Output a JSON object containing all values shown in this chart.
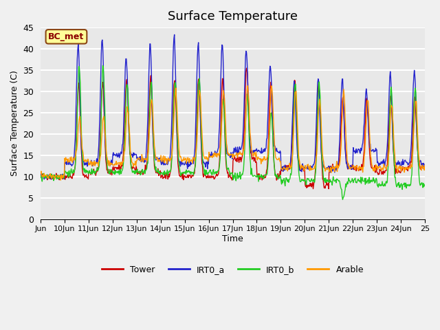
{
  "title": "Surface Temperature",
  "ylabel": "Surface Temperature (C)",
  "xlabel": "Time",
  "annotation": "BC_met",
  "ylim": [
    0,
    45
  ],
  "xlim_days": [
    9,
    25
  ],
  "x_tick_positions": [
    9,
    10,
    11,
    12,
    13,
    14,
    15,
    16,
    17,
    18,
    19,
    20,
    21,
    22,
    23,
    24,
    25
  ],
  "x_tick_labels": [
    "Jun",
    "10Jun",
    "11Jun",
    "12Jun",
    "13Jun",
    "14Jun",
    "15Jun",
    "16Jun",
    "17Jun",
    "18Jun",
    "19Jun",
    "20Jun",
    "21Jun",
    "22Jun",
    "23Jun",
    "24Jun",
    "25"
  ],
  "y_tick_positions": [
    0,
    5,
    10,
    15,
    20,
    25,
    30,
    35,
    40,
    45
  ],
  "y_tick_labels": [
    "0",
    "5",
    "10",
    "15",
    "20",
    "25",
    "30",
    "35",
    "40",
    "45"
  ],
  "legend_entries": [
    "Tower",
    "IRT0_a",
    "IRT0_b",
    "Arable"
  ],
  "colors": {
    "Tower": "#cc0000",
    "IRT0_a": "#2222cc",
    "IRT0_b": "#22cc22",
    "Arable": "#ff9900"
  },
  "plot_bg_color": "#e8e8e8",
  "fig_bg_color": "#f0f0f0",
  "grid_color": "#ffffff",
  "annotation_bg": "#ffff99",
  "annotation_border": "#8B4513",
  "annotation_text_color": "#8B0000",
  "tower_max": [
    10,
    32,
    32,
    33,
    33,
    33,
    33,
    33,
    36,
    32,
    33,
    32,
    28,
    28,
    29,
    29
  ],
  "tower_min": [
    10,
    10,
    11,
    12,
    11,
    10,
    10,
    10,
    14,
    10,
    12,
    8,
    12,
    12,
    11,
    12
  ],
  "irta_max": [
    10,
    41,
    42,
    38,
    41,
    43,
    41,
    41,
    40,
    36,
    32,
    33,
    33,
    30,
    34,
    35
  ],
  "irta_min": [
    10,
    13,
    13,
    15,
    14,
    13,
    13,
    15,
    16,
    16,
    12,
    12,
    12,
    16,
    13,
    13
  ],
  "irtb_max": [
    10,
    36,
    36,
    32,
    32,
    33,
    33,
    28,
    29,
    25,
    32,
    32,
    5,
    9,
    31,
    31
  ],
  "irtb_min": [
    10,
    11,
    11,
    11,
    11,
    11,
    11,
    11,
    10,
    10,
    9,
    9,
    9,
    9,
    8,
    8
  ],
  "arable_max": [
    10,
    24,
    24,
    26,
    28,
    30,
    30,
    30,
    31,
    31,
    30,
    28,
    30,
    28,
    27,
    28
  ],
  "arable_min": [
    10,
    14,
    13,
    13,
    14,
    14,
    14,
    15,
    15,
    14,
    12,
    12,
    12,
    12,
    12,
    12
  ],
  "peak_offsets": {
    "Tower": 0.58,
    "IRT0_a": 0.56,
    "IRT0_b": 0.6,
    "Arable": 0.62
  },
  "noise_std": 0.4,
  "pts_per_day": 48
}
